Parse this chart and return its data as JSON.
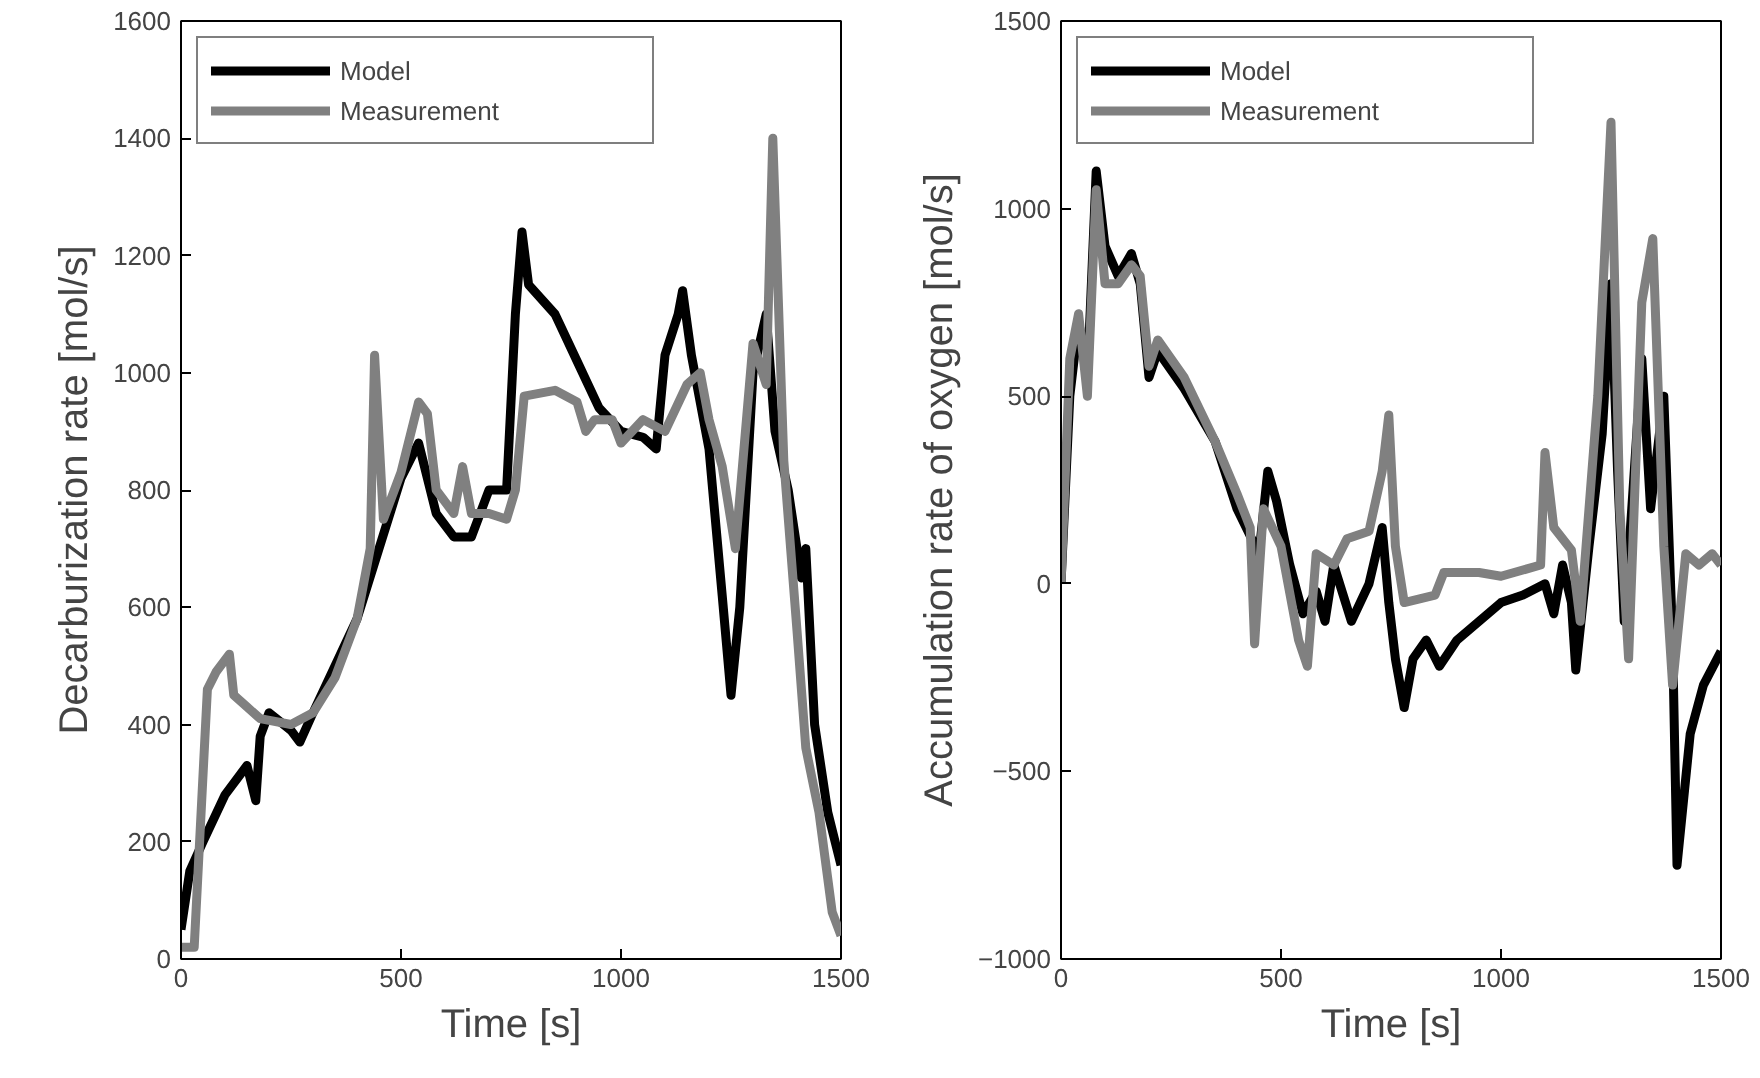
{
  "chart_data": [
    {
      "type": "line",
      "xlabel": "Time [s]",
      "ylabel": "Decarburization rate [mol/s]",
      "xlim": [
        0,
        1500
      ],
      "ylim": [
        0,
        1600
      ],
      "xticks": [
        0,
        500,
        1000,
        1500
      ],
      "yticks": [
        0,
        200,
        400,
        600,
        800,
        1000,
        1200,
        1400,
        1600
      ],
      "legend": "top left",
      "grid": false,
      "line_style": "solid",
      "series": [
        {
          "name": "Model",
          "color": "#000000",
          "x": [
            0,
            20,
            50,
            100,
            150,
            170,
            180,
            200,
            250,
            270,
            300,
            400,
            500,
            540,
            580,
            620,
            660,
            700,
            740,
            760,
            775,
            790,
            850,
            900,
            950,
            1000,
            1050,
            1080,
            1100,
            1130,
            1140,
            1160,
            1200,
            1230,
            1250,
            1270,
            1300,
            1330,
            1350,
            1380,
            1410,
            1420,
            1440,
            1470,
            1500
          ],
          "values": [
            50,
            150,
            200,
            280,
            330,
            270,
            380,
            420,
            390,
            370,
            420,
            580,
            820,
            880,
            760,
            720,
            720,
            800,
            800,
            1100,
            1240,
            1150,
            1100,
            1020,
            940,
            900,
            890,
            870,
            1030,
            1100,
            1140,
            1030,
            870,
            620,
            450,
            600,
            1000,
            1100,
            900,
            800,
            650,
            700,
            400,
            250,
            160
          ]
        },
        {
          "name": "Measurement",
          "color": "#808080",
          "x": [
            0,
            30,
            60,
            80,
            110,
            120,
            150,
            180,
            250,
            300,
            350,
            400,
            430,
            440,
            460,
            500,
            540,
            560,
            580,
            620,
            640,
            660,
            700,
            740,
            760,
            780,
            850,
            900,
            920,
            940,
            980,
            1000,
            1050,
            1100,
            1150,
            1180,
            1200,
            1230,
            1260,
            1300,
            1330,
            1345,
            1370,
            1400,
            1420,
            1450,
            1480,
            1500
          ],
          "values": [
            20,
            20,
            460,
            490,
            520,
            450,
            430,
            410,
            400,
            420,
            480,
            580,
            700,
            1030,
            750,
            830,
            950,
            930,
            800,
            760,
            840,
            760,
            760,
            750,
            800,
            960,
            970,
            950,
            900,
            920,
            920,
            880,
            920,
            900,
            980,
            1000,
            920,
            840,
            700,
            1050,
            980,
            1400,
            850,
            560,
            360,
            250,
            80,
            40
          ]
        }
      ]
    },
    {
      "type": "line",
      "xlabel": "Time [s]",
      "ylabel": "Accumulation rate of oxygen [mol/s]",
      "xlim": [
        0,
        1500
      ],
      "ylim": [
        -1000,
        1500
      ],
      "xticks": [
        0,
        500,
        1000,
        1500
      ],
      "yticks": [
        {
          "value": -1000,
          "label": "−1000"
        },
        {
          "value": -500,
          "label": "−500"
        },
        0,
        500,
        1000,
        1500
      ],
      "legend": "top left",
      "grid": false,
      "line_style": "solid",
      "series": [
        {
          "name": "Model",
          "color": "#000000",
          "x": [
            0,
            20,
            40,
            60,
            80,
            100,
            130,
            160,
            180,
            200,
            220,
            280,
            350,
            400,
            450,
            470,
            490,
            520,
            550,
            580,
            600,
            620,
            660,
            700,
            730,
            745,
            760,
            780,
            800,
            830,
            860,
            900,
            1000,
            1050,
            1100,
            1120,
            1140,
            1160,
            1170,
            1200,
            1230,
            1250,
            1265,
            1280,
            1300,
            1320,
            1340,
            1370,
            1390,
            1400,
            1430,
            1460,
            1500
          ],
          "values": [
            0,
            500,
            700,
            550,
            1100,
            900,
            820,
            880,
            800,
            550,
            620,
            520,
            380,
            200,
            80,
            300,
            220,
            50,
            -80,
            -20,
            -100,
            50,
            -100,
            0,
            150,
            -50,
            -200,
            -330,
            -200,
            -150,
            -220,
            -150,
            -50,
            -30,
            0,
            -80,
            50,
            -50,
            -230,
            100,
            400,
            800,
            300,
            -100,
            250,
            600,
            200,
            500,
            -150,
            -750,
            -400,
            -270,
            -180
          ]
        },
        {
          "name": "Measurement",
          "color": "#808080",
          "x": [
            0,
            20,
            40,
            60,
            80,
            100,
            130,
            160,
            180,
            200,
            220,
            280,
            350,
            400,
            430,
            440,
            460,
            500,
            540,
            560,
            580,
            620,
            650,
            700,
            730,
            745,
            760,
            780,
            850,
            870,
            950,
            1000,
            1090,
            1100,
            1120,
            1160,
            1180,
            1220,
            1250,
            1270,
            1290,
            1320,
            1345,
            1370,
            1390,
            1420,
            1450,
            1480,
            1500
          ],
          "values": [
            0,
            600,
            720,
            500,
            1050,
            800,
            800,
            850,
            820,
            580,
            650,
            550,
            380,
            240,
            150,
            -160,
            200,
            100,
            -150,
            -220,
            80,
            50,
            120,
            140,
            300,
            450,
            100,
            -50,
            -30,
            30,
            30,
            20,
            50,
            350,
            150,
            90,
            -100,
            500,
            1230,
            200,
            -200,
            750,
            920,
            100,
            -270,
            80,
            50,
            80,
            50
          ]
        }
      ]
    }
  ]
}
